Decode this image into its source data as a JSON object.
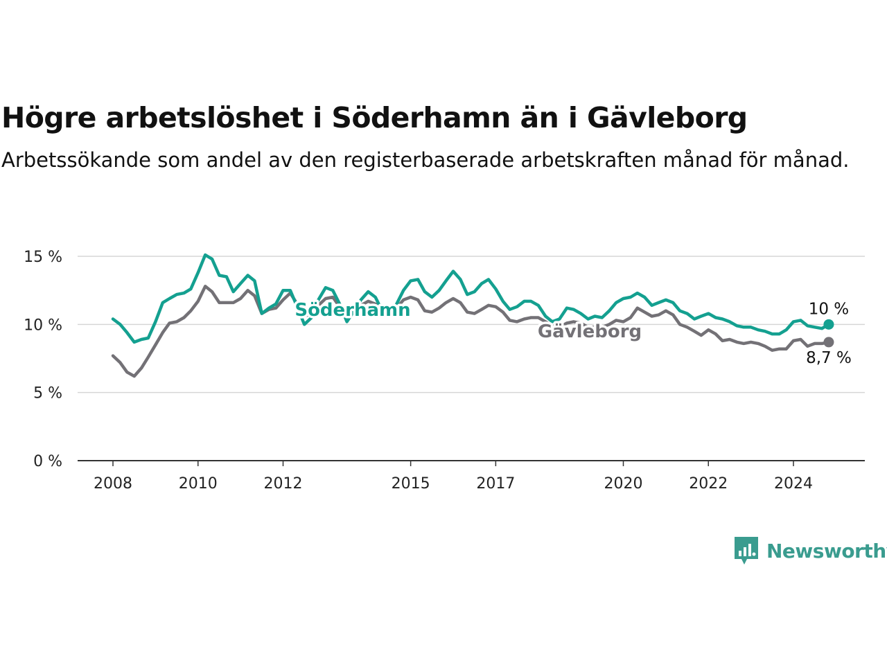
{
  "header": {
    "title": "Högre arbetslöshet i Söderhamn än i Gävleborg",
    "subtitle": "Arbetssökande som andel av den registerbaserade arbetskraften månad för månad."
  },
  "brand": {
    "name": "Newsworthy",
    "icon": "newsworthy-logo-icon",
    "color": "#3a9c8f"
  },
  "chart_data": {
    "type": "line",
    "title": "Högre arbetslöshet i Söderhamn än i Gävleborg",
    "subtitle": "Arbetssökande som andel av den registerbaserade arbetskraften månad för månad.",
    "xlabel": "",
    "ylabel": "",
    "ylim": [
      0,
      15
    ],
    "xlim": [
      2008,
      2025
    ],
    "y_ticks": [
      0,
      5,
      10,
      15
    ],
    "y_tick_labels": [
      "0 %",
      "5 %",
      "10 %",
      "15 %"
    ],
    "x_ticks": [
      2008,
      2010,
      2012,
      2015,
      2017,
      2020,
      2022,
      2024
    ],
    "x_tick_labels": [
      "2008",
      "2010",
      "2012",
      "2015",
      "2017",
      "2020",
      "2022",
      "2024"
    ],
    "grid": "horizontal",
    "legend": "inline labels on lines",
    "series": [
      {
        "name": "Söderhamn",
        "color": "#14a090",
        "end_label": "10 %",
        "points": [
          [
            2008.0,
            10.4
          ],
          [
            2008.17,
            10.0
          ],
          [
            2008.33,
            9.4
          ],
          [
            2008.5,
            8.7
          ],
          [
            2008.67,
            8.9
          ],
          [
            2008.83,
            9.0
          ],
          [
            2009.0,
            10.2
          ],
          [
            2009.17,
            11.6
          ],
          [
            2009.33,
            11.9
          ],
          [
            2009.5,
            12.2
          ],
          [
            2009.67,
            12.3
          ],
          [
            2009.83,
            12.6
          ],
          [
            2010.0,
            13.8
          ],
          [
            2010.17,
            15.1
          ],
          [
            2010.33,
            14.8
          ],
          [
            2010.5,
            13.6
          ],
          [
            2010.67,
            13.5
          ],
          [
            2010.83,
            12.4
          ],
          [
            2011.0,
            13.0
          ],
          [
            2011.17,
            13.6
          ],
          [
            2011.33,
            13.2
          ],
          [
            2011.5,
            10.8
          ],
          [
            2011.67,
            11.2
          ],
          [
            2011.83,
            11.5
          ],
          [
            2012.0,
            12.5
          ],
          [
            2012.17,
            12.5
          ],
          [
            2012.33,
            11.3
          ],
          [
            2012.5,
            10.0
          ],
          [
            2012.67,
            10.5
          ],
          [
            2012.83,
            11.8
          ],
          [
            2013.0,
            12.7
          ],
          [
            2013.17,
            12.5
          ],
          [
            2013.33,
            11.5
          ],
          [
            2013.5,
            10.2
          ],
          [
            2013.67,
            11.0
          ],
          [
            2013.83,
            11.8
          ],
          [
            2014.0,
            12.4
          ],
          [
            2014.17,
            12.0
          ],
          [
            2014.33,
            11.0
          ],
          [
            2014.5,
            10.6
          ],
          [
            2014.67,
            11.5
          ],
          [
            2014.83,
            12.5
          ],
          [
            2015.0,
            13.2
          ],
          [
            2015.17,
            13.3
          ],
          [
            2015.33,
            12.4
          ],
          [
            2015.5,
            12.0
          ],
          [
            2015.67,
            12.5
          ],
          [
            2015.83,
            13.2
          ],
          [
            2016.0,
            13.9
          ],
          [
            2016.17,
            13.3
          ],
          [
            2016.33,
            12.2
          ],
          [
            2016.5,
            12.4
          ],
          [
            2016.67,
            13.0
          ],
          [
            2016.83,
            13.3
          ],
          [
            2017.0,
            12.6
          ],
          [
            2017.17,
            11.7
          ],
          [
            2017.33,
            11.1
          ],
          [
            2017.5,
            11.3
          ],
          [
            2017.67,
            11.7
          ],
          [
            2017.83,
            11.7
          ],
          [
            2018.0,
            11.4
          ],
          [
            2018.17,
            10.6
          ],
          [
            2018.33,
            10.2
          ],
          [
            2018.5,
            10.4
          ],
          [
            2018.67,
            11.2
          ],
          [
            2018.83,
            11.1
          ],
          [
            2019.0,
            10.8
          ],
          [
            2019.17,
            10.4
          ],
          [
            2019.33,
            10.6
          ],
          [
            2019.5,
            10.5
          ],
          [
            2019.67,
            11.0
          ],
          [
            2019.83,
            11.6
          ],
          [
            2020.0,
            11.9
          ],
          [
            2020.17,
            12.0
          ],
          [
            2020.33,
            12.3
          ],
          [
            2020.5,
            12.0
          ],
          [
            2020.67,
            11.4
          ],
          [
            2020.83,
            11.6
          ],
          [
            2021.0,
            11.8
          ],
          [
            2021.17,
            11.6
          ],
          [
            2021.33,
            11.0
          ],
          [
            2021.5,
            10.8
          ],
          [
            2021.67,
            10.4
          ],
          [
            2021.83,
            10.6
          ],
          [
            2022.0,
            10.8
          ],
          [
            2022.17,
            10.5
          ],
          [
            2022.33,
            10.4
          ],
          [
            2022.5,
            10.2
          ],
          [
            2022.67,
            9.9
          ],
          [
            2022.83,
            9.8
          ],
          [
            2023.0,
            9.8
          ],
          [
            2023.17,
            9.6
          ],
          [
            2023.33,
            9.5
          ],
          [
            2023.5,
            9.3
          ],
          [
            2023.67,
            9.3
          ],
          [
            2023.83,
            9.6
          ],
          [
            2024.0,
            10.2
          ],
          [
            2024.17,
            10.3
          ],
          [
            2024.33,
            9.9
          ],
          [
            2024.5,
            9.8
          ],
          [
            2024.67,
            9.7
          ],
          [
            2024.83,
            10.0
          ]
        ]
      },
      {
        "name": "Gävleborg",
        "color": "#737176",
        "end_label": "8,7 %",
        "points": [
          [
            2008.0,
            7.7
          ],
          [
            2008.17,
            7.2
          ],
          [
            2008.33,
            6.5
          ],
          [
            2008.5,
            6.2
          ],
          [
            2008.67,
            6.8
          ],
          [
            2008.83,
            7.6
          ],
          [
            2009.0,
            8.5
          ],
          [
            2009.17,
            9.4
          ],
          [
            2009.33,
            10.1
          ],
          [
            2009.5,
            10.2
          ],
          [
            2009.67,
            10.5
          ],
          [
            2009.83,
            11.0
          ],
          [
            2010.0,
            11.7
          ],
          [
            2010.17,
            12.8
          ],
          [
            2010.33,
            12.4
          ],
          [
            2010.5,
            11.6
          ],
          [
            2010.67,
            11.6
          ],
          [
            2010.83,
            11.6
          ],
          [
            2011.0,
            11.9
          ],
          [
            2011.17,
            12.5
          ],
          [
            2011.33,
            12.1
          ],
          [
            2011.5,
            10.8
          ],
          [
            2011.67,
            11.1
          ],
          [
            2011.83,
            11.2
          ],
          [
            2012.0,
            11.8
          ],
          [
            2012.17,
            12.3
          ],
          [
            2012.33,
            11.5
          ],
          [
            2012.5,
            10.6
          ],
          [
            2012.67,
            10.8
          ],
          [
            2012.83,
            11.4
          ],
          [
            2013.0,
            11.9
          ],
          [
            2013.17,
            12.0
          ],
          [
            2013.33,
            11.3
          ],
          [
            2013.5,
            10.8
          ],
          [
            2013.67,
            11.0
          ],
          [
            2013.83,
            11.4
          ],
          [
            2014.0,
            11.7
          ],
          [
            2014.17,
            11.5
          ],
          [
            2014.33,
            11.0
          ],
          [
            2014.5,
            10.8
          ],
          [
            2014.67,
            11.2
          ],
          [
            2014.83,
            11.8
          ],
          [
            2015.0,
            12.0
          ],
          [
            2015.17,
            11.8
          ],
          [
            2015.33,
            11.0
          ],
          [
            2015.5,
            10.9
          ],
          [
            2015.67,
            11.2
          ],
          [
            2015.83,
            11.6
          ],
          [
            2016.0,
            11.9
          ],
          [
            2016.17,
            11.6
          ],
          [
            2016.33,
            10.9
          ],
          [
            2016.5,
            10.8
          ],
          [
            2016.67,
            11.1
          ],
          [
            2016.83,
            11.4
          ],
          [
            2017.0,
            11.3
          ],
          [
            2017.17,
            10.9
          ],
          [
            2017.33,
            10.3
          ],
          [
            2017.5,
            10.2
          ],
          [
            2017.67,
            10.4
          ],
          [
            2017.83,
            10.5
          ],
          [
            2018.0,
            10.5
          ],
          [
            2018.17,
            10.2
          ],
          [
            2018.33,
            9.9
          ],
          [
            2018.5,
            9.8
          ],
          [
            2018.67,
            10.1
          ],
          [
            2018.83,
            10.2
          ],
          [
            2019.0,
            10.1
          ],
          [
            2019.17,
            9.8
          ],
          [
            2019.33,
            9.8
          ],
          [
            2019.5,
            9.8
          ],
          [
            2019.67,
            10.0
          ],
          [
            2019.83,
            10.3
          ],
          [
            2020.0,
            10.2
          ],
          [
            2020.17,
            10.5
          ],
          [
            2020.33,
            11.2
          ],
          [
            2020.5,
            10.9
          ],
          [
            2020.67,
            10.6
          ],
          [
            2020.83,
            10.7
          ],
          [
            2021.0,
            11.0
          ],
          [
            2021.17,
            10.7
          ],
          [
            2021.33,
            10.0
          ],
          [
            2021.5,
            9.8
          ],
          [
            2021.67,
            9.5
          ],
          [
            2021.83,
            9.2
          ],
          [
            2022.0,
            9.6
          ],
          [
            2022.17,
            9.3
          ],
          [
            2022.33,
            8.8
          ],
          [
            2022.5,
            8.9
          ],
          [
            2022.67,
            8.7
          ],
          [
            2022.83,
            8.6
          ],
          [
            2023.0,
            8.7
          ],
          [
            2023.17,
            8.6
          ],
          [
            2023.33,
            8.4
          ],
          [
            2023.5,
            8.1
          ],
          [
            2023.67,
            8.2
          ],
          [
            2023.83,
            8.2
          ],
          [
            2024.0,
            8.8
          ],
          [
            2024.17,
            8.9
          ],
          [
            2024.33,
            8.4
          ],
          [
            2024.5,
            8.6
          ],
          [
            2024.67,
            8.6
          ],
          [
            2024.83,
            8.7
          ]
        ]
      }
    ]
  }
}
